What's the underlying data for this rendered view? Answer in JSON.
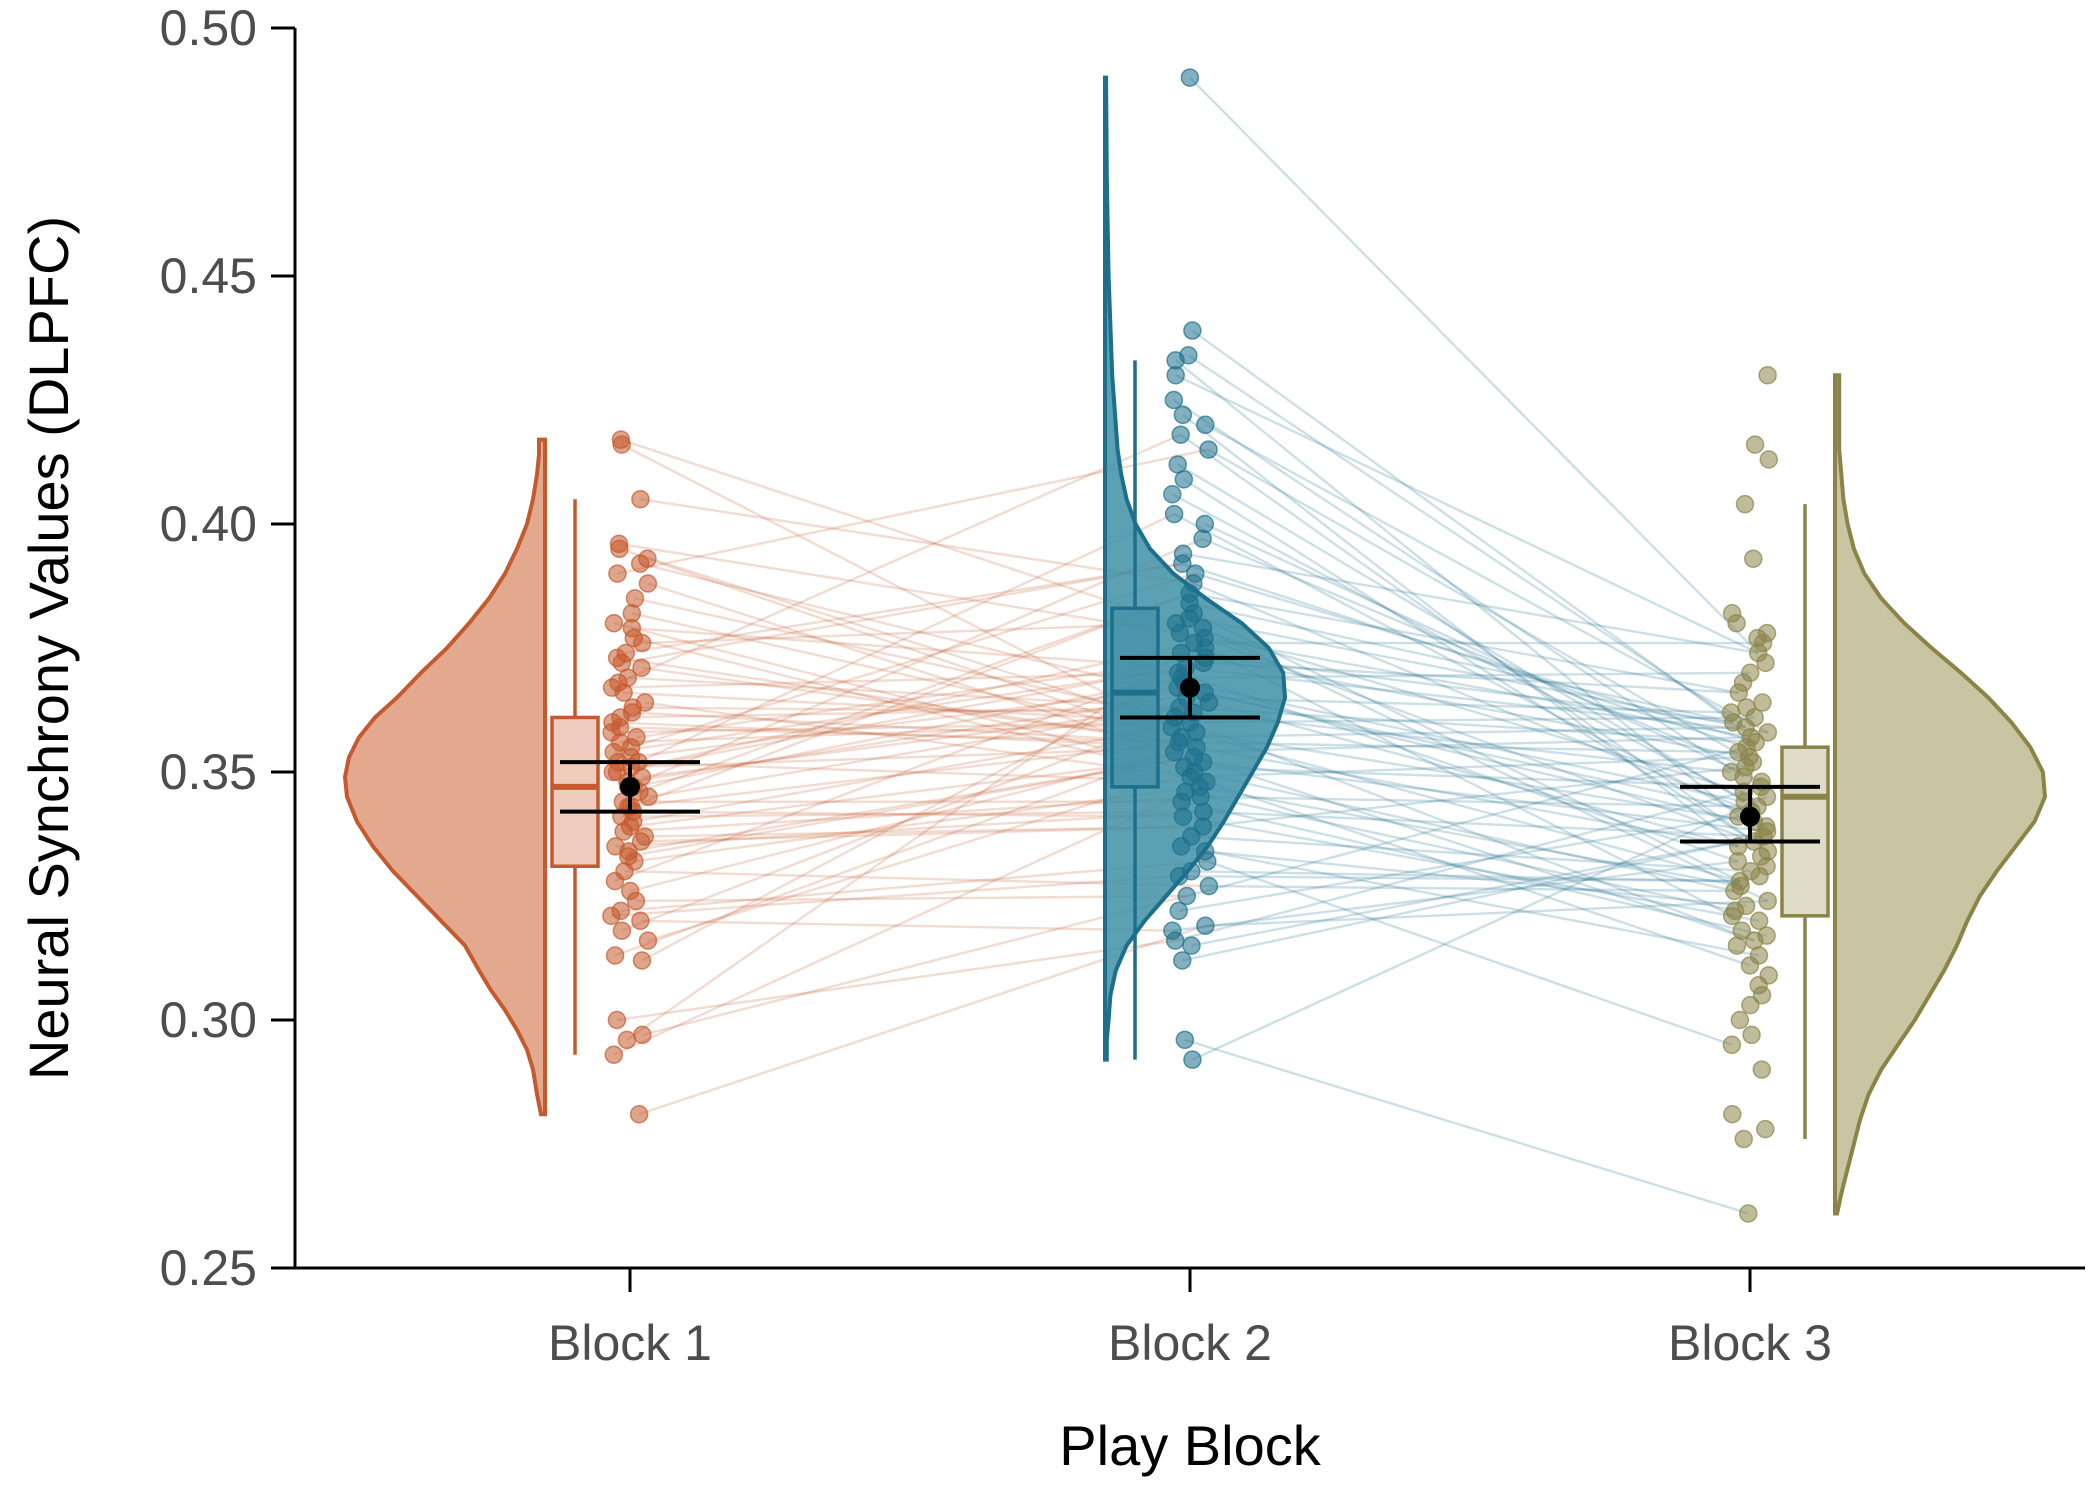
{
  "chart_data": {
    "type": "raincloud",
    "xlabel": "Play Block",
    "ylabel": "Neural Synchrony Values (DLPFC)",
    "ylim": [
      0.25,
      0.5
    ],
    "yticks": [
      "0.25",
      "0.30",
      "0.35",
      "0.40",
      "0.45",
      "0.50"
    ],
    "grid": false,
    "legend": "none",
    "categories": [
      "Block 1",
      "Block 2",
      "Block 3"
    ],
    "series": [
      {
        "category": "Block 1",
        "color": "#c45a2e",
        "fill": "#e3a98f",
        "density_side": "left",
        "mean": 0.347,
        "ci": [
          0.342,
          0.352
        ],
        "box": {
          "q1": 0.331,
          "median": 0.347,
          "q3": 0.361,
          "whisker_low": 0.293,
          "whisker_high": 0.405
        },
        "range": [
          0.281,
          0.417
        ],
        "density_profile": [
          [
            0.281,
            0.02
          ],
          [
            0.285,
            0.04
          ],
          [
            0.29,
            0.06
          ],
          [
            0.294,
            0.09
          ],
          [
            0.298,
            0.14
          ],
          [
            0.302,
            0.2
          ],
          [
            0.306,
            0.27
          ],
          [
            0.31,
            0.33
          ],
          [
            0.315,
            0.4
          ],
          [
            0.32,
            0.52
          ],
          [
            0.325,
            0.64
          ],
          [
            0.33,
            0.76
          ],
          [
            0.335,
            0.86
          ],
          [
            0.34,
            0.94
          ],
          [
            0.345,
            0.99
          ],
          [
            0.349,
            1.0
          ],
          [
            0.353,
            0.98
          ],
          [
            0.357,
            0.93
          ],
          [
            0.361,
            0.85
          ],
          [
            0.365,
            0.74
          ],
          [
            0.37,
            0.62
          ],
          [
            0.375,
            0.49
          ],
          [
            0.38,
            0.38
          ],
          [
            0.385,
            0.28
          ],
          [
            0.39,
            0.2
          ],
          [
            0.395,
            0.14
          ],
          [
            0.4,
            0.09
          ],
          [
            0.405,
            0.06
          ],
          [
            0.41,
            0.04
          ],
          [
            0.414,
            0.03
          ],
          [
            0.417,
            0.03
          ]
        ],
        "points": [
          0.281,
          0.293,
          0.296,
          0.297,
          0.3,
          0.312,
          0.313,
          0.316,
          0.318,
          0.32,
          0.321,
          0.322,
          0.324,
          0.326,
          0.328,
          0.33,
          0.332,
          0.333,
          0.334,
          0.335,
          0.336,
          0.337,
          0.338,
          0.339,
          0.34,
          0.341,
          0.342,
          0.343,
          0.343,
          0.344,
          0.345,
          0.346,
          0.347,
          0.347,
          0.348,
          0.349,
          0.35,
          0.35,
          0.351,
          0.352,
          0.352,
          0.353,
          0.354,
          0.355,
          0.356,
          0.357,
          0.358,
          0.359,
          0.36,
          0.361,
          0.362,
          0.363,
          0.364,
          0.366,
          0.367,
          0.368,
          0.369,
          0.371,
          0.372,
          0.373,
          0.374,
          0.376,
          0.377,
          0.379,
          0.38,
          0.382,
          0.385,
          0.388,
          0.39,
          0.392,
          0.393,
          0.395,
          0.396,
          0.405,
          0.416,
          0.417
        ]
      },
      {
        "category": "Block 2",
        "color": "#1d6f8c",
        "fill": "#3f8fa6",
        "density_side": "right",
        "mean": 0.367,
        "ci": [
          0.361,
          0.373
        ],
        "box": {
          "q1": 0.347,
          "median": 0.366,
          "q3": 0.383,
          "whisker_low": 0.292,
          "whisker_high": 0.433
        },
        "range": [
          0.292,
          0.49
        ],
        "density_profile": [
          [
            0.292,
            0.01
          ],
          [
            0.296,
            0.01
          ],
          [
            0.3,
            0.02
          ],
          [
            0.305,
            0.03
          ],
          [
            0.31,
            0.06
          ],
          [
            0.315,
            0.12
          ],
          [
            0.32,
            0.22
          ],
          [
            0.325,
            0.34
          ],
          [
            0.33,
            0.46
          ],
          [
            0.335,
            0.57
          ],
          [
            0.34,
            0.66
          ],
          [
            0.345,
            0.74
          ],
          [
            0.35,
            0.82
          ],
          [
            0.355,
            0.9
          ],
          [
            0.36,
            0.96
          ],
          [
            0.365,
            1.0
          ],
          [
            0.37,
            0.99
          ],
          [
            0.375,
            0.91
          ],
          [
            0.38,
            0.76
          ],
          [
            0.385,
            0.56
          ],
          [
            0.39,
            0.38
          ],
          [
            0.395,
            0.25
          ],
          [
            0.4,
            0.17
          ],
          [
            0.405,
            0.12
          ],
          [
            0.41,
            0.09
          ],
          [
            0.415,
            0.07
          ],
          [
            0.42,
            0.06
          ],
          [
            0.425,
            0.05
          ],
          [
            0.43,
            0.04
          ],
          [
            0.44,
            0.03
          ],
          [
            0.45,
            0.02
          ],
          [
            0.46,
            0.015
          ],
          [
            0.47,
            0.01
          ],
          [
            0.48,
            0.008
          ],
          [
            0.49,
            0.006
          ]
        ],
        "points": [
          0.292,
          0.296,
          0.312,
          0.315,
          0.316,
          0.318,
          0.319,
          0.322,
          0.325,
          0.327,
          0.329,
          0.33,
          0.332,
          0.334,
          0.335,
          0.337,
          0.339,
          0.341,
          0.342,
          0.344,
          0.345,
          0.346,
          0.347,
          0.348,
          0.349,
          0.35,
          0.351,
          0.352,
          0.353,
          0.354,
          0.355,
          0.356,
          0.357,
          0.358,
          0.359,
          0.36,
          0.361,
          0.362,
          0.363,
          0.364,
          0.365,
          0.366,
          0.367,
          0.368,
          0.369,
          0.37,
          0.371,
          0.372,
          0.373,
          0.374,
          0.375,
          0.376,
          0.377,
          0.378,
          0.379,
          0.38,
          0.381,
          0.382,
          0.384,
          0.386,
          0.388,
          0.39,
          0.392,
          0.394,
          0.397,
          0.4,
          0.402,
          0.406,
          0.409,
          0.412,
          0.415,
          0.418,
          0.42,
          0.422,
          0.425,
          0.43,
          0.433,
          0.434,
          0.439,
          0.49
        ]
      },
      {
        "category": "Block 3",
        "color": "#8a8448",
        "fill": "#c9c4a1",
        "density_side": "right",
        "mean": 0.341,
        "ci": [
          0.336,
          0.347
        ],
        "box": {
          "q1": 0.321,
          "median": 0.345,
          "q3": 0.355,
          "whisker_low": 0.276,
          "whisker_high": 0.404
        },
        "range": [
          0.261,
          0.43
        ],
        "density_profile": [
          [
            0.261,
            0.01
          ],
          [
            0.265,
            0.03
          ],
          [
            0.27,
            0.06
          ],
          [
            0.275,
            0.09
          ],
          [
            0.28,
            0.12
          ],
          [
            0.285,
            0.16
          ],
          [
            0.29,
            0.22
          ],
          [
            0.295,
            0.3
          ],
          [
            0.3,
            0.38
          ],
          [
            0.305,
            0.45
          ],
          [
            0.31,
            0.52
          ],
          [
            0.315,
            0.58
          ],
          [
            0.32,
            0.63
          ],
          [
            0.325,
            0.69
          ],
          [
            0.33,
            0.77
          ],
          [
            0.335,
            0.86
          ],
          [
            0.34,
            0.95
          ],
          [
            0.345,
            1.0
          ],
          [
            0.35,
            0.99
          ],
          [
            0.355,
            0.93
          ],
          [
            0.36,
            0.84
          ],
          [
            0.365,
            0.73
          ],
          [
            0.37,
            0.6
          ],
          [
            0.375,
            0.46
          ],
          [
            0.38,
            0.33
          ],
          [
            0.385,
            0.22
          ],
          [
            0.39,
            0.14
          ],
          [
            0.395,
            0.09
          ],
          [
            0.4,
            0.06
          ],
          [
            0.405,
            0.04
          ],
          [
            0.41,
            0.03
          ],
          [
            0.415,
            0.02
          ],
          [
            0.42,
            0.02
          ],
          [
            0.425,
            0.02
          ],
          [
            0.43,
            0.02
          ]
        ],
        "points": [
          0.261,
          0.276,
          0.278,
          0.281,
          0.29,
          0.295,
          0.297,
          0.3,
          0.303,
          0.305,
          0.307,
          0.309,
          0.311,
          0.313,
          0.315,
          0.316,
          0.317,
          0.318,
          0.32,
          0.321,
          0.322,
          0.323,
          0.324,
          0.326,
          0.327,
          0.328,
          0.329,
          0.33,
          0.331,
          0.332,
          0.333,
          0.334,
          0.335,
          0.336,
          0.337,
          0.338,
          0.339,
          0.34,
          0.341,
          0.342,
          0.343,
          0.344,
          0.345,
          0.346,
          0.347,
          0.348,
          0.349,
          0.35,
          0.351,
          0.352,
          0.353,
          0.354,
          0.355,
          0.356,
          0.357,
          0.358,
          0.359,
          0.36,
          0.361,
          0.362,
          0.363,
          0.364,
          0.366,
          0.368,
          0.37,
          0.372,
          0.374,
          0.376,
          0.377,
          0.378,
          0.38,
          0.382,
          0.393,
          0.404,
          0.413,
          0.416,
          0.43
        ]
      }
    ]
  }
}
